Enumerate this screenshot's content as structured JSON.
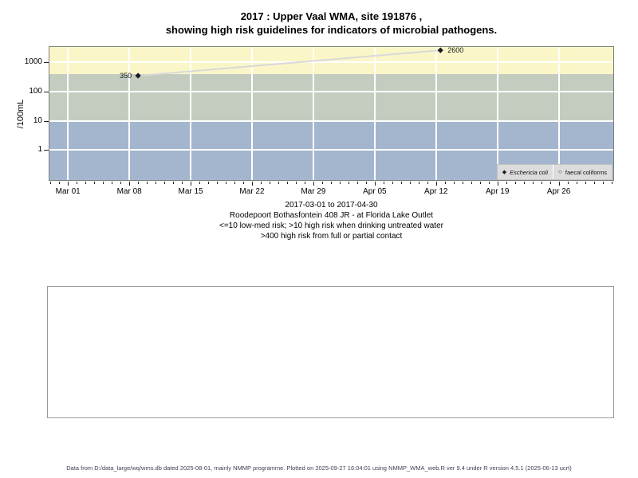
{
  "title": {
    "line1": "2017 : Upper Vaal WMA, site 191876 ,",
    "line2": "showing high risk guidelines for indicators of microbial pathogens."
  },
  "chart_data": {
    "type": "scatter",
    "title": "2017 : Upper Vaal WMA, site 191876 , showing high risk guidelines for indicators of microbial pathogens.",
    "ylabel": "/100mL",
    "y_scale": "log10",
    "y_ticks": [
      1000,
      100,
      10,
      1
    ],
    "x_ticks": [
      {
        "label": "Mar 01",
        "day": 0
      },
      {
        "label": "Mar 08",
        "day": 7
      },
      {
        "label": "Mar 15",
        "day": 14
      },
      {
        "label": "Mar 22",
        "day": 21
      },
      {
        "label": "Mar 29",
        "day": 28
      },
      {
        "label": "Apr 05",
        "day": 35
      },
      {
        "label": "Apr 12",
        "day": 42
      },
      {
        "label": "Apr 19",
        "day": 49
      },
      {
        "label": "Apr 26",
        "day": 56
      }
    ],
    "x_range_days": [
      -2.2,
      62.3
    ],
    "x_range_dates": [
      "2017-03-01",
      "2017-04-30"
    ],
    "grid": true,
    "bands": [
      {
        "name": "high-risk-contact-gt400",
        "from": 400,
        "to": "top",
        "color": "#faf6c8"
      },
      {
        "name": "high-risk-drinking-10-400",
        "from": 10,
        "to": 400,
        "color": "#c4ccc0"
      },
      {
        "name": "low-med-risk-le10",
        "from": "bottom",
        "to": 10,
        "color": "#a4b5ce"
      }
    ],
    "series": [
      {
        "name": "Eschericia coli",
        "marker": "filled-diamond",
        "points": [
          {
            "date": "2017-03-09",
            "day": 8,
            "value": 350,
            "label": "350",
            "label_side": "left"
          },
          {
            "date": "2017-04-12",
            "day": 42.5,
            "value": 2600,
            "label": "2600",
            "label_side": "right"
          }
        ]
      },
      {
        "name": "faecal coliforms",
        "marker": "open-circle",
        "points": []
      }
    ],
    "legend": [
      {
        "label": "Eschericia coli",
        "marker": "filled-diamond",
        "italic": true
      },
      {
        "label": "faecal coliforms",
        "marker": "open-circle",
        "italic": false
      }
    ],
    "legend_position": "bottom-right-inside",
    "line_color": "#d9d9d9",
    "marker_color": "#1a1a1a"
  },
  "subtitle": {
    "line1": "2017-03-01 to 2017-04-30",
    "line2": "Roodepoort Bothasfontein 408 JR - at Florida Lake Outlet",
    "line3": "<=10 low-med risk; >10 high risk when drinking untreated water",
    "line4": ">400 high risk from full or partial contact"
  },
  "footer": {
    "text": "Data from D:/data_large/wq/wms.db dated 2025-08-01, mainly NMMP programme. Plotted on 2025-09-27 16:04:01 using NMMP_WMA_web.R ver 9.4 under R version 4.5.1 (2025-06-13 ucrt)"
  }
}
